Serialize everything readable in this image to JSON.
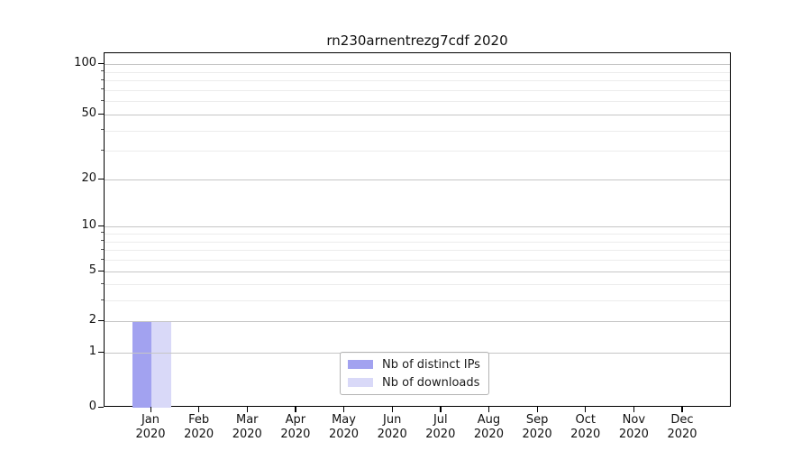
{
  "chart_data": {
    "type": "bar",
    "title": "rn230arnentrezg7cdf 2020",
    "categories": [
      "Jan 2020",
      "Feb 2020",
      "Mar 2020",
      "Apr 2020",
      "May 2020",
      "Jun 2020",
      "Jul 2020",
      "Aug 2020",
      "Sep 2020",
      "Oct 2020",
      "Nov 2020",
      "Dec 2020"
    ],
    "x_tick_months": [
      "Jan",
      "Feb",
      "Mar",
      "Apr",
      "May",
      "Jun",
      "Jul",
      "Aug",
      "Sep",
      "Oct",
      "Nov",
      "Dec"
    ],
    "x_tick_year": "2020",
    "series": [
      {
        "name": "Nb of distinct IPs",
        "color": "#a2a2f0",
        "values": [
          2,
          0,
          0,
          0,
          0,
          0,
          0,
          0,
          0,
          0,
          0,
          0
        ]
      },
      {
        "name": "Nb of downloads",
        "color": "#d9d9f8",
        "values": [
          2,
          0,
          0,
          0,
          0,
          0,
          0,
          0,
          0,
          0,
          0,
          0
        ]
      }
    ],
    "y_axis": {
      "scale": "log1p",
      "major_ticks": [
        0,
        1,
        2,
        5,
        10,
        20,
        50,
        100
      ],
      "minor_ticks": [
        3,
        4,
        6,
        7,
        8,
        9,
        30,
        40,
        60,
        70,
        80,
        90
      ],
      "ylim": [
        0,
        116
      ]
    },
    "grid": {
      "horizontal": true,
      "vertical": false,
      "major_color": "#c6c6c6",
      "minor_color": "#ececec"
    },
    "legend": {
      "position": "lower center",
      "items": [
        "Nb of distinct IPs",
        "Nb of downloads"
      ]
    }
  }
}
